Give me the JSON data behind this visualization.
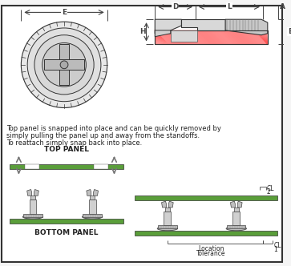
{
  "bg_color": "#f5f5f5",
  "border_color": "#333333",
  "green_color": "#5a9e3a",
  "gray_color": "#aaaaaa",
  "red_hatch_color": "#ff4444",
  "dim_line_color": "#444444",
  "text_color": "#222222",
  "description_line1": "Top panel is snapped into place and can be quickly removed by",
  "description_line2": "simply pulling the panel up and away from the standoffs.",
  "description_line3": "To reattach simply snap back into place.",
  "label_E": "E",
  "label_D": "D",
  "label_L": "L",
  "label_A": "A",
  "label_H": "H",
  "label_B": "B",
  "label_top_panel": "TOP PANEL",
  "label_bottom_panel": "BOTTOM PANEL",
  "label_location_tolerance_1": "Location",
  "label_location_tolerance_2": "Tolerance",
  "label_CL1": "CL",
  "label_CL1_num": "1",
  "label_CL2": "CL",
  "label_CL2_num": "2"
}
